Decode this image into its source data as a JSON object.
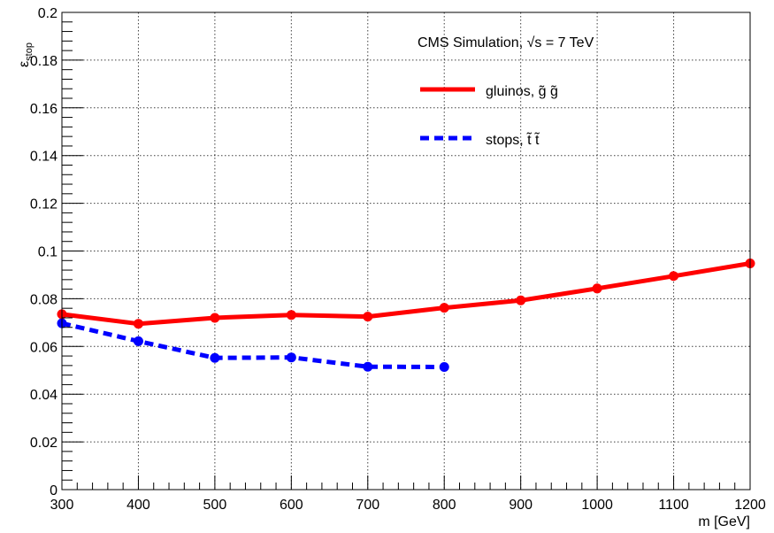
{
  "chart_data": {
    "type": "line",
    "x_axis": {
      "label": "m [GeV]",
      "range": [
        300,
        1200
      ],
      "ticks": [
        300,
        400,
        500,
        600,
        700,
        800,
        900,
        1000,
        1100,
        1200
      ],
      "tick_labels": [
        "300",
        "400",
        "500",
        "600",
        "700",
        "800",
        "900",
        "1000",
        "1100",
        "1200"
      ]
    },
    "y_axis": {
      "label_main": "ε",
      "label_sub": "stop",
      "range": [
        0,
        0.2
      ],
      "ticks": [
        0,
        0.02,
        0.04,
        0.06,
        0.08,
        0.1,
        0.12,
        0.14,
        0.16,
        0.18,
        0.2
      ],
      "tick_labels": [
        "0",
        "0.02",
        "0.04",
        "0.06",
        "0.08",
        "0.1",
        "0.12",
        "0.14",
        "0.16",
        "0.18",
        "0.2"
      ]
    },
    "grid": true,
    "legend": {
      "header": "CMS Simulation,  √s = 7 TeV",
      "placement": "top-right",
      "entries": [
        "gluinos, g̃ g̃",
        "stops, t̃ t̃"
      ]
    },
    "series": [
      {
        "name": "gluinos, g̃ g̃",
        "color": "#ff0000",
        "line_style": "solid",
        "x": [
          300,
          400,
          500,
          600,
          700,
          800,
          900,
          1000,
          1100,
          1200
        ],
        "y": [
          0.0735,
          0.0695,
          0.072,
          0.0732,
          0.0725,
          0.0762,
          0.0793,
          0.0843,
          0.0895,
          0.0948
        ]
      },
      {
        "name": "stops, t̃ t̃",
        "color": "#0000ff",
        "line_style": "dashed",
        "x": [
          300,
          400,
          500,
          600,
          700,
          800
        ],
        "y": [
          0.0697,
          0.0622,
          0.0552,
          0.0554,
          0.0515,
          0.0514
        ]
      }
    ]
  }
}
